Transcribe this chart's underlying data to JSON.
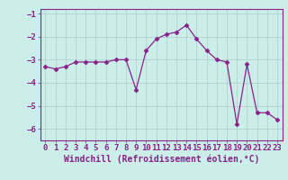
{
  "x": [
    0,
    1,
    2,
    3,
    4,
    5,
    6,
    7,
    8,
    9,
    10,
    11,
    12,
    13,
    14,
    15,
    16,
    17,
    18,
    19,
    20,
    21,
    22,
    23
  ],
  "y": [
    -3.3,
    -3.4,
    -3.3,
    -3.1,
    -3.1,
    -3.1,
    -3.1,
    -3.0,
    -3.0,
    -4.3,
    -2.6,
    -2.1,
    -1.9,
    -1.8,
    -1.5,
    -2.1,
    -2.6,
    -3.0,
    -3.1,
    -5.8,
    -3.2,
    -5.3,
    -5.3,
    -5.6
  ],
  "line_color": "#882288",
  "marker": "D",
  "marker_size": 2.5,
  "bg_color": "#cceee8",
  "grid_color": "#aacccc",
  "xlabel": "Windchill (Refroidissement éolien,°C)",
  "xlabel_fontsize": 7,
  "tick_fontsize": 6.5,
  "ylim": [
    -6.5,
    -0.8
  ],
  "xlim": [
    -0.5,
    23.5
  ],
  "yticks": [
    -6,
    -5,
    -4,
    -3,
    -2,
    -1
  ],
  "xticks": [
    0,
    1,
    2,
    3,
    4,
    5,
    6,
    7,
    8,
    9,
    10,
    11,
    12,
    13,
    14,
    15,
    16,
    17,
    18,
    19,
    20,
    21,
    22,
    23
  ]
}
